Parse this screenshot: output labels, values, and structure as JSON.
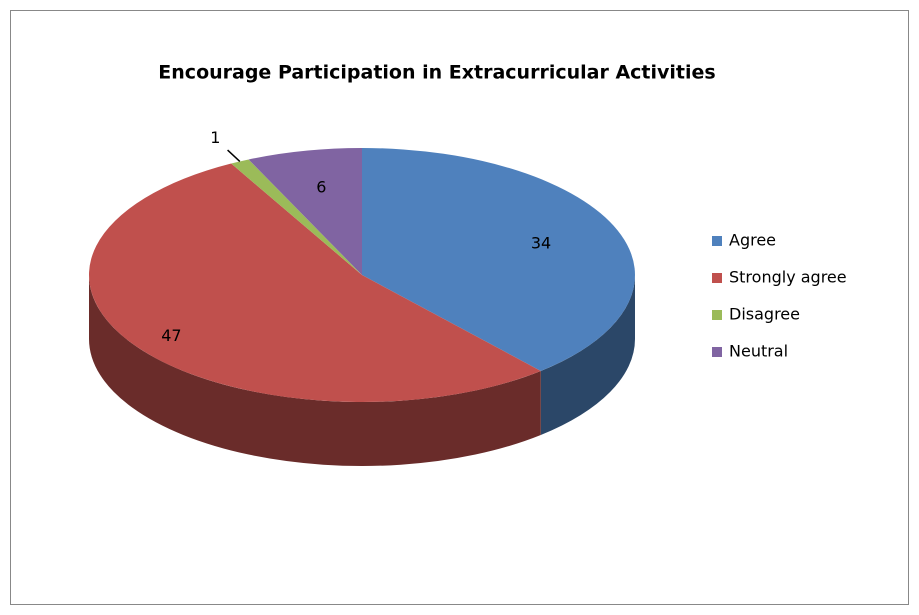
{
  "chart_data": {
    "type": "pie",
    "three_d": true,
    "title": "Encourage Participation in Extracurricular Activities",
    "categories": [
      "Agree",
      "Strongly agree",
      "Disagree",
      "Neutral"
    ],
    "values": [
      34,
      47,
      1,
      6
    ],
    "colors": [
      "#4f81bd",
      "#c0504d",
      "#9bbb59",
      "#8064a2"
    ],
    "legend": "right"
  }
}
